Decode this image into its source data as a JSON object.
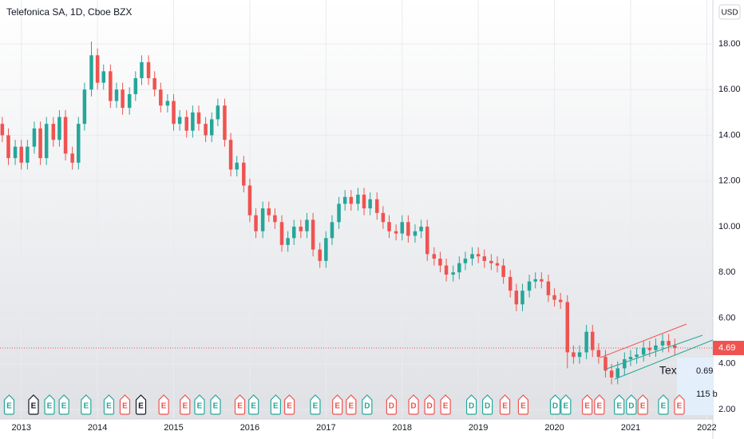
{
  "chart_data": {
    "type": "candlestick",
    "title": "Telefonica SA, 1D, Cboe BZX",
    "unit": "USD",
    "up_color": "#26a69a",
    "down_color": "#ef5350",
    "x": [
      2012.75,
      2012.83,
      2012.92,
      2013.0,
      2013.08,
      2013.17,
      2013.25,
      2013.33,
      2013.42,
      2013.5,
      2013.58,
      2013.67,
      2013.75,
      2013.83,
      2013.92,
      2014.0,
      2014.08,
      2014.17,
      2014.25,
      2014.33,
      2014.42,
      2014.5,
      2014.58,
      2014.67,
      2014.75,
      2014.83,
      2014.92,
      2015.0,
      2015.08,
      2015.17,
      2015.25,
      2015.33,
      2015.42,
      2015.5,
      2015.58,
      2015.67,
      2015.75,
      2015.83,
      2015.92,
      2016.0,
      2016.08,
      2016.17,
      2016.25,
      2016.33,
      2016.42,
      2016.5,
      2016.58,
      2016.67,
      2016.75,
      2016.83,
      2016.92,
      2017.0,
      2017.08,
      2017.17,
      2017.25,
      2017.33,
      2017.42,
      2017.5,
      2017.58,
      2017.67,
      2017.75,
      2017.83,
      2017.92,
      2018.0,
      2018.08,
      2018.17,
      2018.25,
      2018.33,
      2018.42,
      2018.5,
      2018.58,
      2018.67,
      2018.75,
      2018.83,
      2018.92,
      2019.0,
      2019.08,
      2019.17,
      2019.25,
      2019.33,
      2019.42,
      2019.5,
      2019.58,
      2019.67,
      2019.75,
      2019.83,
      2019.92,
      2020.0,
      2020.08,
      2020.17,
      2020.25,
      2020.33,
      2020.42,
      2020.5,
      2020.58,
      2020.67,
      2020.75,
      2020.83,
      2020.92,
      2021.0,
      2021.08,
      2021.17,
      2021.25,
      2021.33,
      2021.42,
      2021.5,
      2021.58
    ],
    "open": [
      14.5,
      14.0,
      13.0,
      13.5,
      12.8,
      13.5,
      14.3,
      13.0,
      14.5,
      13.8,
      14.8,
      13.2,
      12.8,
      14.5,
      16.0,
      17.5,
      16.3,
      16.8,
      15.5,
      16.0,
      15.2,
      15.8,
      16.5,
      17.2,
      16.5,
      16.0,
      15.3,
      15.5,
      14.5,
      14.8,
      14.2,
      15.0,
      14.5,
      14.0,
      14.7,
      15.3,
      13.8,
      12.5,
      12.8,
      11.8,
      10.5,
      9.8,
      10.8,
      10.5,
      10.2,
      9.2,
      9.5,
      10.0,
      9.8,
      10.3,
      9.0,
      8.5,
      9.5,
      10.2,
      11.0,
      11.3,
      11.0,
      11.4,
      10.8,
      11.2,
      10.6,
      10.2,
      9.8,
      9.7,
      10.2,
      9.6,
      9.8,
      10.0,
      8.8,
      8.6,
      8.3,
      7.9,
      8.0,
      8.4,
      8.6,
      8.8,
      8.7,
      8.5,
      8.4,
      8.3,
      7.8,
      7.2,
      6.6,
      7.2,
      7.6,
      7.7,
      7.6,
      7.0,
      6.8,
      6.7,
      4.5,
      4.3,
      4.5,
      5.4,
      4.6,
      4.3,
      3.7,
      3.4,
      3.8,
      4.2,
      4.3,
      4.4,
      4.7,
      4.6,
      4.8,
      5.0,
      4.8
    ],
    "high": [
      14.8,
      14.3,
      13.8,
      13.8,
      13.8,
      14.6,
      14.6,
      14.8,
      14.8,
      15.1,
      15.1,
      13.5,
      14.8,
      16.3,
      18.1,
      17.8,
      17.1,
      17.1,
      16.3,
      16.3,
      16.1,
      16.8,
      17.5,
      17.5,
      16.8,
      16.3,
      15.8,
      15.8,
      15.1,
      15.1,
      15.3,
      15.3,
      14.8,
      15.0,
      15.6,
      15.6,
      14.1,
      13.1,
      13.1,
      12.1,
      10.8,
      11.1,
      11.1,
      10.8,
      10.5,
      9.8,
      10.3,
      10.3,
      10.6,
      10.6,
      9.3,
      9.8,
      10.5,
      11.3,
      11.6,
      11.6,
      11.7,
      11.7,
      11.5,
      11.5,
      10.9,
      10.5,
      10.1,
      10.5,
      10.5,
      10.1,
      10.3,
      10.3,
      9.1,
      8.9,
      8.6,
      8.3,
      8.7,
      8.9,
      9.1,
      9.1,
      9.0,
      8.8,
      8.7,
      8.6,
      8.1,
      7.5,
      7.5,
      7.9,
      8.0,
      8.0,
      7.9,
      7.3,
      7.1,
      7.0,
      4.8,
      4.8,
      5.7,
      5.7,
      4.9,
      4.6,
      4.0,
      4.1,
      4.5,
      4.6,
      4.7,
      5.0,
      5.0,
      5.1,
      5.3,
      5.3,
      5.1
    ],
    "low": [
      13.7,
      12.7,
      12.7,
      12.5,
      12.5,
      13.2,
      12.7,
      12.7,
      13.5,
      13.5,
      12.9,
      12.5,
      12.5,
      14.2,
      15.7,
      16.0,
      16.0,
      15.2,
      15.2,
      14.9,
      14.9,
      15.5,
      16.2,
      16.2,
      15.7,
      15.0,
      15.0,
      14.2,
      14.2,
      13.9,
      13.9,
      14.2,
      13.7,
      13.7,
      14.4,
      13.5,
      12.2,
      12.2,
      11.5,
      10.2,
      9.5,
      9.5,
      10.2,
      9.9,
      8.9,
      8.9,
      9.2,
      9.5,
      9.5,
      8.7,
      8.2,
      8.2,
      9.2,
      9.9,
      10.7,
      10.7,
      10.7,
      10.5,
      10.5,
      10.3,
      9.9,
      9.5,
      9.4,
      9.4,
      9.3,
      9.3,
      9.5,
      8.5,
      8.3,
      8.0,
      7.6,
      7.6,
      7.7,
      8.1,
      8.3,
      8.4,
      8.2,
      8.1,
      8.0,
      7.5,
      6.9,
      6.3,
      6.3,
      6.9,
      7.3,
      7.3,
      6.7,
      6.5,
      6.4,
      3.8,
      4.0,
      4.0,
      4.2,
      4.3,
      4.0,
      3.4,
      3.1,
      3.1,
      3.5,
      3.9,
      4.0,
      4.1,
      4.3,
      4.3,
      4.5,
      4.5,
      4.39
    ],
    "close": [
      14.0,
      13.0,
      13.5,
      12.8,
      13.5,
      14.3,
      13.0,
      14.5,
      13.8,
      14.8,
      13.2,
      12.8,
      14.5,
      16.0,
      17.5,
      16.3,
      16.8,
      15.5,
      16.0,
      15.2,
      15.8,
      16.5,
      17.2,
      16.5,
      16.0,
      15.3,
      15.5,
      14.5,
      14.8,
      14.2,
      15.0,
      14.5,
      14.0,
      14.7,
      15.3,
      13.8,
      12.5,
      12.8,
      11.8,
      10.5,
      9.8,
      10.8,
      10.5,
      10.2,
      9.2,
      9.5,
      10.0,
      9.8,
      10.3,
      9.0,
      8.5,
      9.5,
      10.2,
      11.0,
      11.3,
      11.0,
      11.4,
      10.8,
      11.2,
      10.6,
      10.2,
      9.8,
      9.7,
      10.2,
      9.6,
      9.8,
      10.0,
      8.8,
      8.6,
      8.3,
      7.9,
      8.0,
      8.4,
      8.6,
      8.8,
      8.7,
      8.5,
      8.4,
      8.3,
      7.8,
      7.2,
      6.6,
      7.2,
      7.6,
      7.7,
      7.6,
      7.0,
      6.8,
      6.7,
      4.5,
      4.3,
      4.5,
      5.4,
      4.6,
      4.3,
      3.7,
      3.4,
      3.8,
      4.2,
      4.3,
      4.4,
      4.7,
      4.6,
      4.8,
      5.0,
      4.8,
      4.69
    ],
    "xlim": [
      2012.72,
      2022.08
    ],
    "xticks": [
      2013,
      2014,
      2015,
      2016,
      2017,
      2018,
      2019,
      2020,
      2021,
      2022
    ],
    "ylim": [
      1.58,
      19.92
    ],
    "yticks": [
      {
        "value": 2,
        "label": "2.00"
      },
      {
        "value": 4,
        "label": "4.00"
      },
      {
        "value": 6,
        "label": "6.00"
      },
      {
        "value": 8,
        "label": "8.00"
      },
      {
        "value": 10,
        "label": "10.00"
      },
      {
        "value": 12,
        "label": "12.00"
      },
      {
        "value": 14,
        "label": "14.00"
      },
      {
        "value": 16,
        "label": "16.00"
      },
      {
        "value": 18,
        "label": "18.00"
      }
    ],
    "events": [
      {
        "x": 2012.84,
        "label": "E",
        "color": "#26a69a"
      },
      {
        "x": 2013.16,
        "label": "E",
        "color": "#131722"
      },
      {
        "x": 2013.37,
        "label": "E",
        "color": "#26a69a"
      },
      {
        "x": 2013.56,
        "label": "E",
        "color": "#26a69a"
      },
      {
        "x": 2013.85,
        "label": "E",
        "color": "#26a69a"
      },
      {
        "x": 2014.15,
        "label": "E",
        "color": "#26a69a"
      },
      {
        "x": 2014.36,
        "label": "E",
        "color": "#ef5350"
      },
      {
        "x": 2014.57,
        "label": "E",
        "color": "#131722"
      },
      {
        "x": 2014.87,
        "label": "E",
        "color": "#ef5350"
      },
      {
        "x": 2015.15,
        "label": "E",
        "color": "#ef5350"
      },
      {
        "x": 2015.34,
        "label": "E",
        "color": "#26a69a"
      },
      {
        "x": 2015.55,
        "label": "E",
        "color": "#26a69a"
      },
      {
        "x": 2015.87,
        "label": "E",
        "color": "#ef5350"
      },
      {
        "x": 2016.05,
        "label": "E",
        "color": "#26a69a"
      },
      {
        "x": 2016.34,
        "label": "E",
        "color": "#26a69a"
      },
      {
        "x": 2016.52,
        "label": "E",
        "color": "#ef5350"
      },
      {
        "x": 2016.86,
        "label": "E",
        "color": "#26a69a"
      },
      {
        "x": 2017.15,
        "label": "E",
        "color": "#ef5350"
      },
      {
        "x": 2017.33,
        "label": "E",
        "color": "#ef5350"
      },
      {
        "x": 2017.54,
        "label": "D",
        "color": "#26a69a"
      },
      {
        "x": 2017.86,
        "label": "D",
        "color": "#ef5350"
      },
      {
        "x": 2018.15,
        "label": "D",
        "color": "#ef5350"
      },
      {
        "x": 2018.36,
        "label": "D",
        "color": "#ef5350"
      },
      {
        "x": 2018.57,
        "label": "E",
        "color": "#ef5350"
      },
      {
        "x": 2018.91,
        "label": "D",
        "color": "#26a69a"
      },
      {
        "x": 2019.12,
        "label": "D",
        "color": "#26a69a"
      },
      {
        "x": 2019.35,
        "label": "E",
        "color": "#ef5350"
      },
      {
        "x": 2019.59,
        "label": "E",
        "color": "#ef5350"
      },
      {
        "x": 2020.01,
        "label": "D",
        "color": "#26a69a"
      },
      {
        "x": 2020.15,
        "label": "E",
        "color": "#26a69a"
      },
      {
        "x": 2020.43,
        "label": "E",
        "color": "#ef5350"
      },
      {
        "x": 2020.59,
        "label": "E",
        "color": "#ef5350"
      },
      {
        "x": 2020.85,
        "label": "E",
        "color": "#26a69a"
      },
      {
        "x": 2021.01,
        "label": "D",
        "color": "#26a69a"
      },
      {
        "x": 2021.16,
        "label": "E",
        "color": "#ef5350"
      },
      {
        "x": 2021.43,
        "label": "E",
        "color": "#26a69a"
      },
      {
        "x": 2021.64,
        "label": "E",
        "color": "#ef5350"
      }
    ],
    "text_note": "Tex",
    "measure": [
      "0.69",
      "115 b"
    ]
  }
}
